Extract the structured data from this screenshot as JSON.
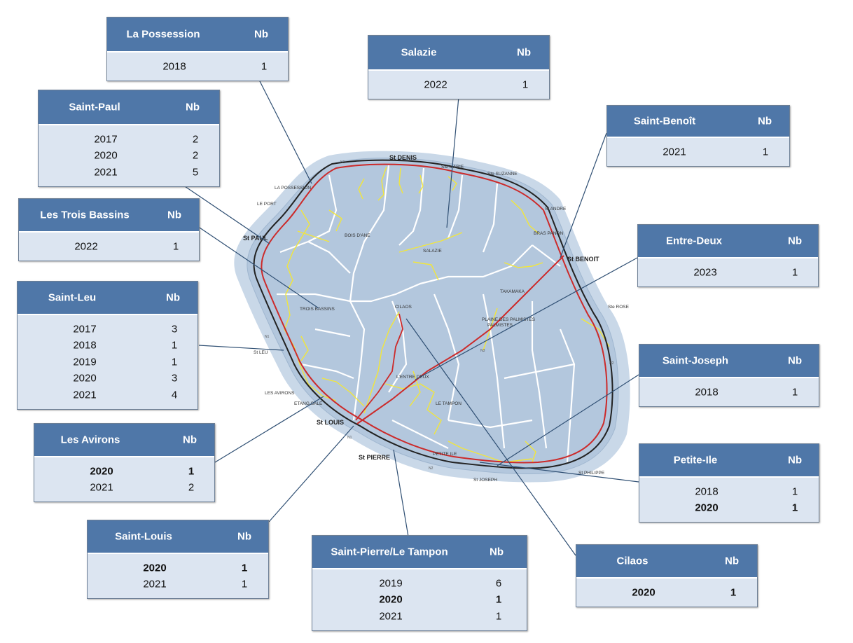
{
  "colors": {
    "header_bg": "#4f77a8",
    "body_bg": "#dce5f1",
    "island_fill": "#b3c7dd",
    "coastal_road": "#cc2a2a",
    "outer_road": "#222222",
    "local_roads": "#f2e63a",
    "commune_borders": "#ffffff",
    "leader_lines": "#2f4f73"
  },
  "map_labels": {
    "st_denis": "St DENIS",
    "ste_marie": "Ste MARIE",
    "ste_suzanne": "Ste SUZANNE",
    "st_andre": "St ANDRE",
    "bras_panon": "BRAS PANON",
    "st_benoit": "St BENOIT",
    "ste_rose": "Ste ROSE",
    "la_possession": "LA POSSESSION",
    "le_port": "LE PORT",
    "st_paul": "St PAUL",
    "bois_d_ane": "BOIS D'ANE",
    "salazie": "SALAZIE",
    "plaine_palmistes": "PLAINE DES PALMISTES",
    "plaine_palmistes_2": "PALMISTES",
    "takamaka": "TAKAMAKA",
    "trois_bassins": "TROIS BASSINS",
    "cilaos": "CILAOS",
    "st_leu": "St LEU",
    "les_avirons": "LES AVIRONS",
    "etang_sale": "ETANG SALE",
    "st_louis": "St LOUIS",
    "entre_deux": "L'ENTRE DEUX",
    "le_tampon": "LE TAMPON",
    "st_pierre": "St PIERRE",
    "petite_ile": "PETITE ILE",
    "st_joseph": "St JOSEPH",
    "st_philippe": "St PHILIPPE",
    "rn1": "N1",
    "rn2": "N2",
    "rn3": "N3"
  },
  "tables": [
    {
      "key": "la_possession",
      "name": "La Possession",
      "nb_label": "Nb",
      "rows": [
        {
          "year": "2018",
          "nb": "1",
          "bold": false
        }
      ]
    },
    {
      "key": "salazie",
      "name": "Salazie",
      "nb_label": "Nb",
      "rows": [
        {
          "year": "2022",
          "nb": "1",
          "bold": false
        }
      ]
    },
    {
      "key": "saint_paul",
      "name": "Saint-Paul",
      "nb_label": "Nb",
      "rows": [
        {
          "year": "2017",
          "nb": "2",
          "bold": false
        },
        {
          "year": "2020",
          "nb": "2",
          "bold": false
        },
        {
          "year": "2021",
          "nb": "5",
          "bold": false
        }
      ]
    },
    {
      "key": "saint_benoit",
      "name": "Saint-Benoît",
      "nb_label": "Nb",
      "rows": [
        {
          "year": "2021",
          "nb": "1",
          "bold": false
        }
      ]
    },
    {
      "key": "les_trois_bassins",
      "name": "Les Trois Bassins",
      "nb_label": "Nb",
      "rows": [
        {
          "year": "2022",
          "nb": "1",
          "bold": false
        }
      ]
    },
    {
      "key": "entre_deux",
      "name": "Entre-Deux",
      "nb_label": "Nb",
      "rows": [
        {
          "year": "2023",
          "nb": "1",
          "bold": false
        }
      ]
    },
    {
      "key": "saint_leu",
      "name": "Saint-Leu",
      "nb_label": "Nb",
      "rows": [
        {
          "year": "2017",
          "nb": "3",
          "bold": false
        },
        {
          "year": "2018",
          "nb": "1",
          "bold": false
        },
        {
          "year": "2019",
          "nb": "1",
          "bold": false
        },
        {
          "year": "2020",
          "nb": "3",
          "bold": false
        },
        {
          "year": "2021",
          "nb": "4",
          "bold": false
        }
      ]
    },
    {
      "key": "saint_joseph",
      "name": "Saint-Joseph",
      "nb_label": "Nb",
      "rows": [
        {
          "year": "2018",
          "nb": "1",
          "bold": false
        }
      ]
    },
    {
      "key": "les_avirons",
      "name": "Les Avirons",
      "nb_label": "Nb",
      "rows": [
        {
          "year": "2020",
          "nb": "1",
          "bold": true
        },
        {
          "year": "2021",
          "nb": "2",
          "bold": false
        }
      ]
    },
    {
      "key": "petite_ile",
      "name": "Petite-Ile",
      "nb_label": "Nb",
      "rows": [
        {
          "year": "2018",
          "nb": "1",
          "bold": false
        },
        {
          "year": "2020",
          "nb": "1",
          "bold": true
        }
      ]
    },
    {
      "key": "saint_louis",
      "name": "Saint-Louis",
      "nb_label": "Nb",
      "rows": [
        {
          "year": "2020",
          "nb": "1",
          "bold": true
        },
        {
          "year": "2021",
          "nb": "1",
          "bold": false
        }
      ]
    },
    {
      "key": "saint_pierre_le_tampon",
      "name": "Saint-Pierre/Le Tampon",
      "nb_label": "Nb",
      "rows": [
        {
          "year": "2019",
          "nb": "6",
          "bold": false
        },
        {
          "year": "2020",
          "nb": "1",
          "bold": true
        },
        {
          "year": "2021",
          "nb": "1",
          "bold": false
        }
      ]
    },
    {
      "key": "cilaos",
      "name": "Cilaos",
      "nb_label": "Nb",
      "rows": [
        {
          "year": "2020",
          "nb": "1",
          "bold": true
        }
      ]
    }
  ]
}
